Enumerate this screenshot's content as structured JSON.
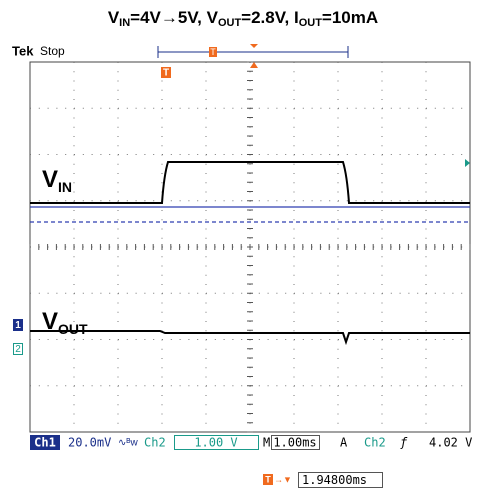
{
  "title": {
    "parts": [
      "V",
      "IN",
      "=4V",
      "→",
      "5V, V",
      "OUT",
      "=2.8V, I",
      "OUT",
      "=10mA"
    ]
  },
  "header": {
    "brand": "Tek",
    "status": "Stop",
    "trigger_pos": "T"
  },
  "markers": {
    "trigger": "T",
    "ch1": "1",
    "ch2": "2"
  },
  "labels": {
    "vin": {
      "main": "V",
      "sub": "IN"
    },
    "vout": {
      "main": "V",
      "sub": "OUT"
    }
  },
  "status_bar": {
    "ch1": "Ch1",
    "ch1_scale": "20.0mV",
    "ch1_bw": "∿ᴮw",
    "ch2": "Ch2",
    "ch2_scale": "1.00 V",
    "m": "M",
    "timebase": "1.00ms",
    "a": "A",
    "trig_src": "Ch2",
    "trig_slope": "ƒ",
    "trig_level": "4.02 V"
  },
  "readout": {
    "arrow": "→▼",
    "delay": "1.94800ms"
  }
}
